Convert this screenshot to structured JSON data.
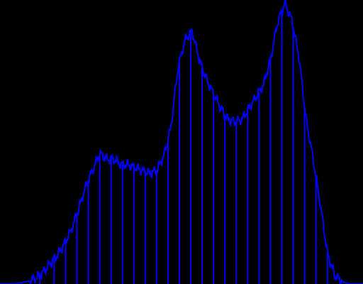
{
  "chart_data": {
    "type": "line",
    "title": "",
    "xlabel": "",
    "ylabel": "",
    "grid": false,
    "legend": "none",
    "background_color": "#000000",
    "line_color": "#0000ff",
    "xlim": [
      0,
      255
    ],
    "ylim": [
      0,
      1.0
    ],
    "series": [
      {
        "name": "",
        "x": [
          0,
          10,
          20,
          25,
          30,
          35,
          40,
          45,
          50,
          55,
          60,
          65,
          70,
          75,
          80,
          85,
          90,
          95,
          100,
          105,
          110,
          115,
          120,
          125,
          130,
          135,
          140,
          145,
          150,
          155,
          160,
          165,
          170,
          175,
          180,
          185,
          190,
          195,
          200,
          205,
          210,
          215,
          220,
          225,
          230,
          235,
          240,
          245,
          250,
          255
        ],
        "y": [
          0.0,
          0.0,
          0.01,
          0.02,
          0.04,
          0.07,
          0.1,
          0.14,
          0.19,
          0.26,
          0.34,
          0.4,
          0.46,
          0.44,
          0.44,
          0.42,
          0.42,
          0.41,
          0.4,
          0.39,
          0.4,
          0.45,
          0.55,
          0.76,
          0.86,
          0.89,
          0.79,
          0.72,
          0.67,
          0.62,
          0.58,
          0.57,
          0.58,
          0.62,
          0.66,
          0.7,
          0.79,
          0.92,
          0.99,
          0.93,
          0.8,
          0.58,
          0.44,
          0.28,
          0.11,
          0.03,
          0.01,
          0.0,
          0.0,
          0.0
        ]
      }
    ],
    "spikes": {
      "x": [
        28,
        38,
        46,
        54,
        62,
        70,
        78,
        86,
        94,
        102,
        110,
        118,
        126,
        134,
        142,
        150,
        158,
        166,
        174,
        182,
        190,
        198,
        206,
        214,
        222,
        230
      ],
      "min_y": [
        0.0,
        0.0,
        0.0,
        0.0,
        0.0,
        0.0,
        0.0,
        0.0,
        0.0,
        0.0,
        0.0,
        0.0,
        0.0,
        0.0,
        0.0,
        0.0,
        0.0,
        0.0,
        0.0,
        0.0,
        0.0,
        0.0,
        0.0,
        0.0,
        0.0,
        0.0
      ]
    }
  }
}
